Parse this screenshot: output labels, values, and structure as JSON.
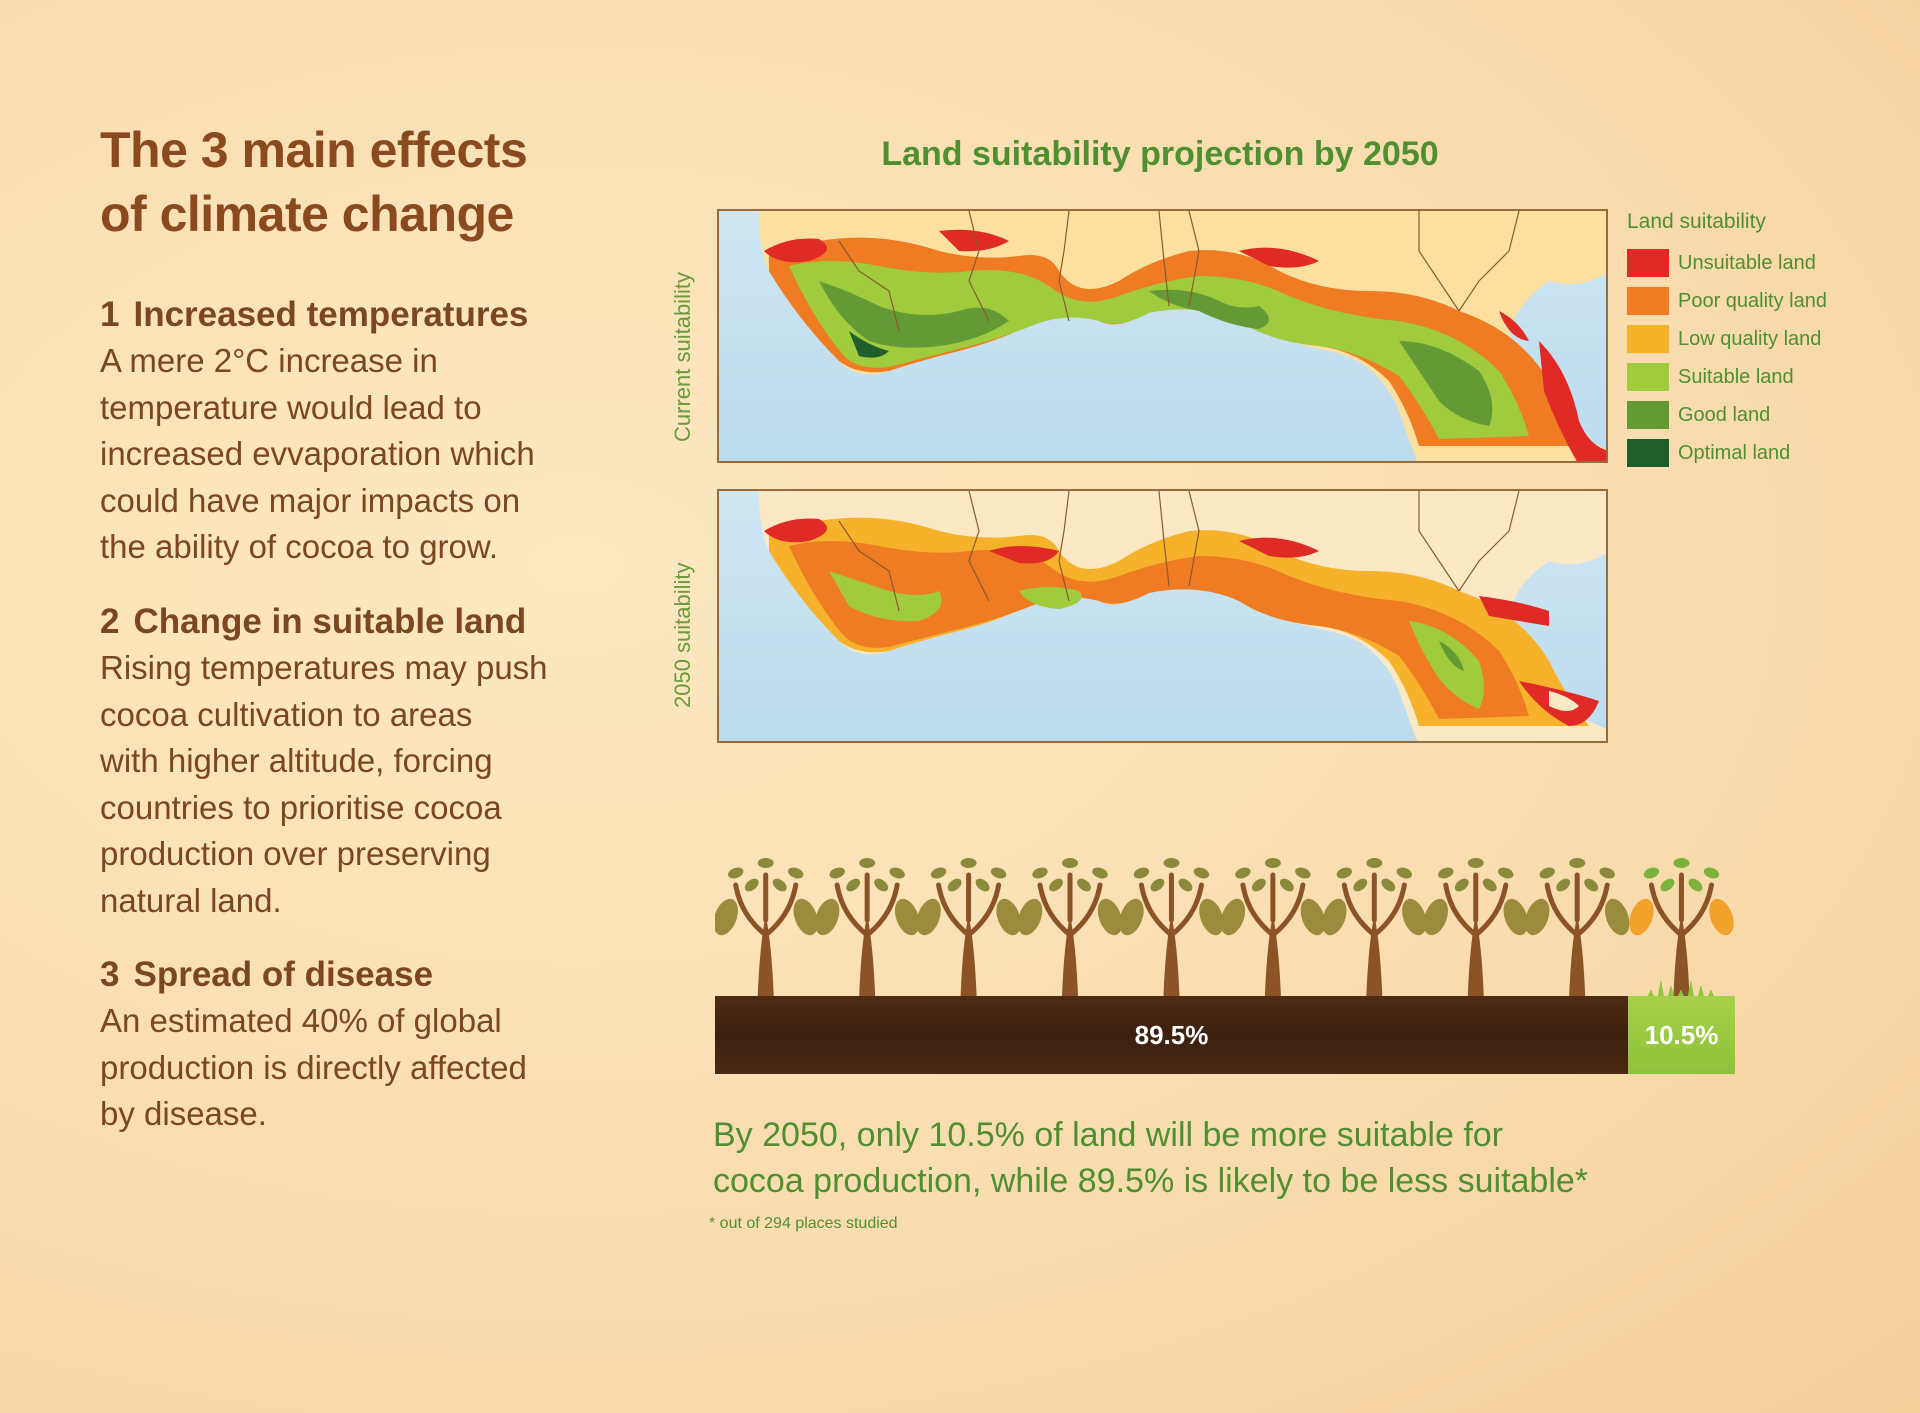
{
  "title_lines": [
    "The 3 main effects",
    "of climate change"
  ],
  "effects": [
    {
      "number": "1",
      "heading": "Increased temperatures",
      "lines": [
        "A mere 2°C increase in",
        "temperature would lead to",
        "increased evvaporation which",
        "could have major impacts on",
        "the ability of cocoa to grow."
      ]
    },
    {
      "number": "2",
      "heading": "Change in suitable land",
      "lines": [
        "Rising temperatures may push",
        "cocoa cultivation to areas",
        "with higher altitude, forcing",
        "countries to prioritise cocoa",
        "production over preserving",
        "natural land."
      ]
    },
    {
      "number": "3",
      "heading": "Spread of disease",
      "lines": [
        "An estimated 40% of global",
        "production is directly affected",
        "by disease."
      ]
    }
  ],
  "map_section": {
    "title": "Land suitability projection by 2050",
    "maps": [
      {
        "label": "Current suitability"
      },
      {
        "label": "2050 suitability"
      }
    ],
    "legend": {
      "title": "Land suitability",
      "items": [
        {
          "label": "Unsuitable land",
          "color": "#e02a26"
        },
        {
          "label": "Poor quality land",
          "color": "#ef7b23"
        },
        {
          "label": "Low quality land",
          "color": "#f7b22b"
        },
        {
          "label": "Suitable land",
          "color": "#9fcb3c"
        },
        {
          "label": "Good land",
          "color": "#649a35"
        },
        {
          "label": "Optimal land",
          "color": "#1f5d2a"
        }
      ]
    }
  },
  "split": {
    "less_suitable_label": "89.5%",
    "less_suitable_value": 89.5,
    "more_suitable_label": "10.5%",
    "more_suitable_value": 10.5,
    "tree_icons": {
      "less_suitable_count": 9,
      "more_suitable_count": 1
    }
  },
  "summary_lines": [
    "By 2050, only 10.5% of land will be more suitable for",
    "cocoa production, while 89.5% is likely to be less suitable*"
  ],
  "footnote": "* out of 294 places studied"
}
